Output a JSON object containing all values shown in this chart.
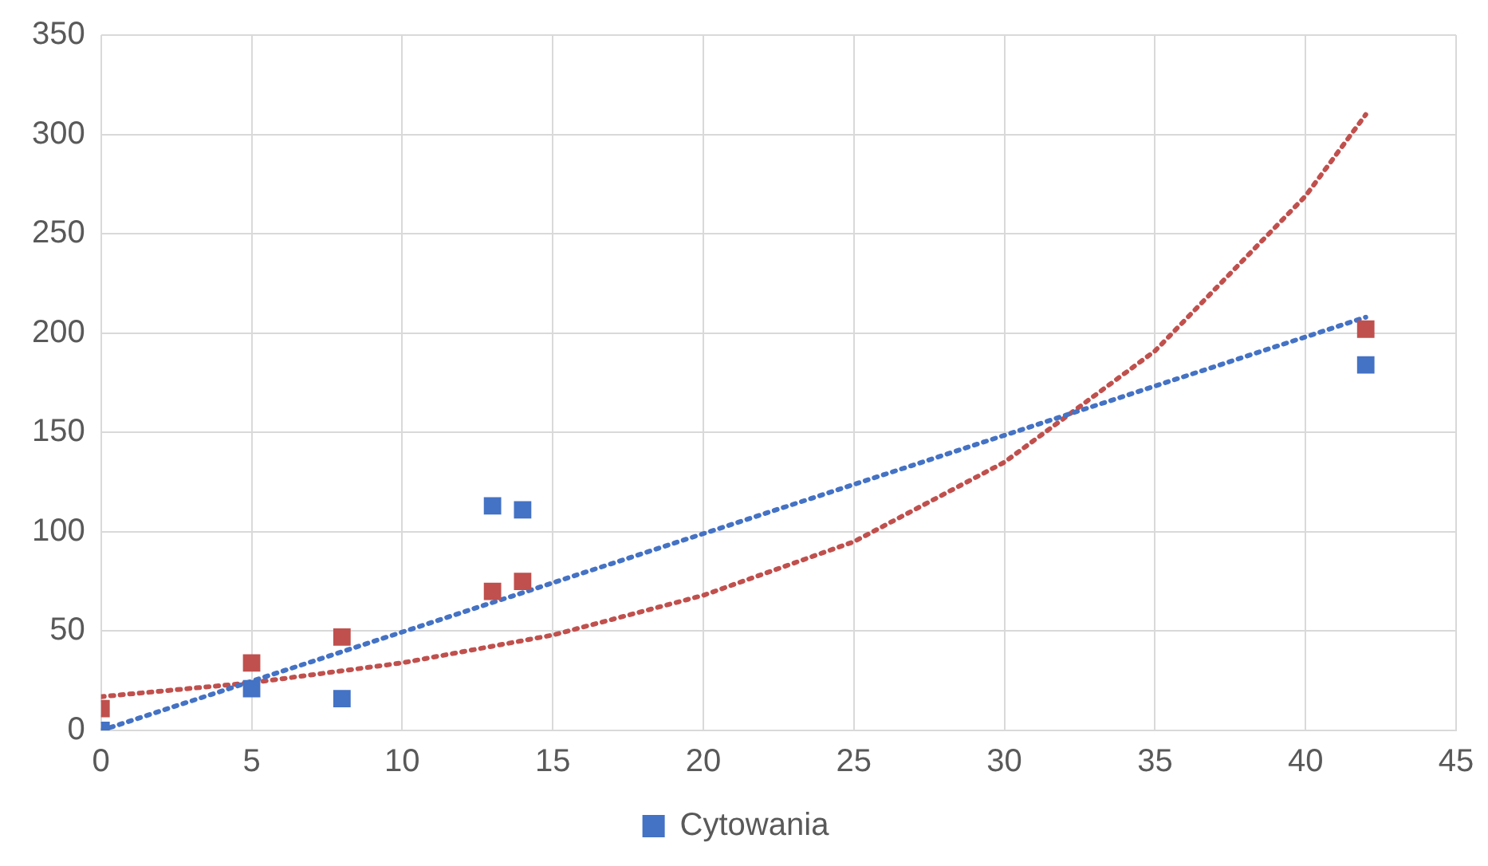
{
  "chart_data": {
    "type": "scatter",
    "xlim": [
      0,
      45
    ],
    "xticks": [
      0,
      5,
      10,
      15,
      20,
      25,
      30,
      35,
      40,
      45
    ],
    "ylim": [
      0,
      350
    ],
    "yticks": [
      0,
      50,
      100,
      150,
      200,
      250,
      300,
      350
    ],
    "grid": true,
    "legend": "bottom",
    "marker": "square",
    "series": [
      {
        "name": "Cytowania",
        "color": "#4472c4",
        "x": [
          0,
          5,
          8,
          13,
          14,
          42
        ],
        "values": [
          0,
          21,
          16,
          113,
          111,
          184
        ]
      },
      {
        "color": "#c0504d",
        "x": [
          0,
          5,
          8,
          13,
          14,
          42
        ],
        "values": [
          11,
          34,
          47,
          70,
          75,
          202
        ]
      },
      {
        "type": "line",
        "color": "#4472c4",
        "line_style": "dotted",
        "marker": "none",
        "x": [
          0,
          42
        ],
        "values": [
          0,
          208
        ]
      },
      {
        "type": "line",
        "color": "#c0504d",
        "line_style": "dotted",
        "marker": "none",
        "x": [
          0,
          5,
          10,
          15,
          20,
          25,
          30,
          35,
          40,
          42
        ],
        "values": [
          17,
          24,
          34,
          48,
          68,
          95,
          135,
          191,
          269,
          310
        ]
      }
    ]
  }
}
